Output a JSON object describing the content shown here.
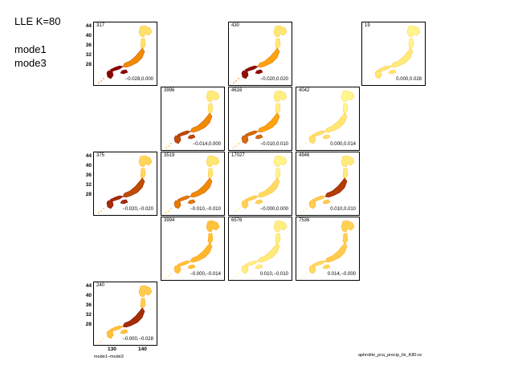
{
  "header": {
    "title": "LLE K=80",
    "mode_a": "mode1",
    "mode_b": "mode3"
  },
  "footer": {
    "left": "mode1−mode3",
    "right": "aphrolite_pca_precip_lle_K80.nc"
  },
  "chart_data": {
    "type": "heatmap",
    "description_type": "small-multiples map grid",
    "y_ticks": [
      "44",
      "40",
      "36",
      "32",
      "28"
    ],
    "x_ticks": [
      "130",
      "140"
    ],
    "colors": {
      "low": "#ffff99",
      "mid": "#ff9900",
      "high": "#800000",
      "outline": "#000000"
    },
    "panels": [
      {
        "row": 0,
        "col": 0,
        "count": "317",
        "range": "−0.028,0.000",
        "intensity": {
          "n": 0.15,
          "c": 0.55,
          "s": 0.98
        }
      },
      {
        "row": 0,
        "col": 2,
        "count": "430",
        "range": "−0.020,0.020",
        "intensity": {
          "n": 0.12,
          "c": 0.45,
          "s": 0.95
        }
      },
      {
        "row": 0,
        "col": 4,
        "count": "19",
        "range": "0.000,0.028",
        "intensity": {
          "n": 0.05,
          "c": 0.1,
          "s": 0.12
        }
      },
      {
        "row": 1,
        "col": 1,
        "count": "3996",
        "range": "−0.014,0.000",
        "intensity": {
          "n": 0.1,
          "c": 0.55,
          "s": 0.75
        }
      },
      {
        "row": 1,
        "col": 2,
        "count": "4616",
        "range": "−0.010,0.010",
        "intensity": {
          "n": 0.08,
          "c": 0.45,
          "s": 0.65
        }
      },
      {
        "row": 1,
        "col": 3,
        "count": "4042",
        "range": "0.000,0.014",
        "intensity": {
          "n": 0.04,
          "c": 0.12,
          "s": 0.15
        }
      },
      {
        "row": 2,
        "col": 0,
        "count": "375",
        "range": "−0.020,−0.020",
        "intensity": {
          "n": 0.2,
          "c": 0.75,
          "s": 0.85
        }
      },
      {
        "row": 2,
        "col": 1,
        "count": "3519",
        "range": "−0.010,−0.010",
        "intensity": {
          "n": 0.12,
          "c": 0.55,
          "s": 0.6
        }
      },
      {
        "row": 2,
        "col": 2,
        "count": "17027",
        "range": "−0.000,0.000",
        "intensity": {
          "n": 0.05,
          "c": 0.18,
          "s": 0.22
        }
      },
      {
        "row": 2,
        "col": 3,
        "count": "4946",
        "range": "0.010,0.010",
        "intensity": {
          "n": 0.1,
          "c": 0.8,
          "s": 0.25
        }
      },
      {
        "row": 3,
        "col": 1,
        "count": "3994",
        "range": "−0.000,−0.014",
        "intensity": {
          "n": 0.3,
          "c": 0.35,
          "s": 0.3
        }
      },
      {
        "row": 3,
        "col": 2,
        "count": "6576",
        "range": "0.010,−0.010",
        "intensity": {
          "n": 0.08,
          "c": 0.1,
          "s": 0.08
        }
      },
      {
        "row": 3,
        "col": 3,
        "count": "7536",
        "range": "0.014,−0.000",
        "intensity": {
          "n": 0.22,
          "c": 0.25,
          "s": 0.18
        }
      },
      {
        "row": 4,
        "col": 0,
        "count": "240",
        "range": "−0.000,−0.028",
        "intensity": {
          "n": 0.25,
          "c": 0.85,
          "s": 0.3
        }
      }
    ]
  }
}
